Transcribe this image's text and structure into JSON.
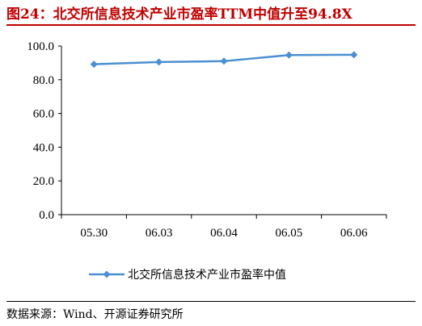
{
  "title": "图24：北交所信息技术产业市盈率TTM中值升至94.8X",
  "source": "数据来源：Wind、开源证券研究所",
  "colors": {
    "title": "#c00000",
    "series": "#4a8fd1",
    "axis": "#000000"
  },
  "chart_data": {
    "type": "line",
    "categories": [
      "05.30",
      "06.03",
      "06.04",
      "06.05",
      "06.06"
    ],
    "series": [
      {
        "name": "北交所信息技术产业市盈率中值",
        "values": [
          89.2,
          90.5,
          91.0,
          94.6,
          94.8
        ],
        "marker": "diamond"
      }
    ],
    "ylim": [
      0,
      100
    ],
    "yticks": [
      0.0,
      20.0,
      40.0,
      60.0,
      80.0,
      100.0
    ],
    "ytick_labels": [
      "0.0",
      "20.0",
      "40.0",
      "60.0",
      "80.0",
      "100.0"
    ],
    "grid": false,
    "legend": "bottom-center",
    "title": "",
    "xlabel": "",
    "ylabel": ""
  }
}
